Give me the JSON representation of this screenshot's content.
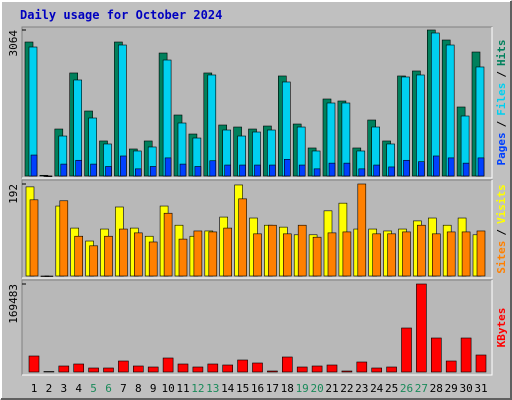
{
  "chart_data": [
    {
      "type": "bar",
      "title": "Daily usage for October 2024",
      "legend_separator": "/",
      "ylim": [
        0,
        3064
      ],
      "yticks": [
        3064
      ],
      "series": [
        {
          "name": "Hits",
          "color": "#00805c",
          "values": [
            2812,
            15,
            986,
            2162,
            1364,
            735,
            2812,
            567,
            735,
            2581,
            1280,
            881,
            2162,
            1070,
            1028,
            986,
            1049,
            2099,
            1091,
            588,
            1616,
            1574,
            588,
            1175,
            735,
            2099,
            2204,
            3064,
            2854,
            1448,
            2602
          ]
        },
        {
          "name": "Files",
          "color": "#00d0f0",
          "values": [
            2707,
            0,
            839,
            2015,
            1217,
            672,
            2749,
            525,
            609,
            2434,
            1112,
            797,
            2120,
            965,
            839,
            923,
            965,
            1973,
            1028,
            525,
            1532,
            1532,
            525,
            1028,
            672,
            2078,
            2120,
            3001,
            2749,
            1259,
            2288
          ]
        },
        {
          "name": "Pages",
          "color": "#0040ff",
          "values": [
            440,
            0,
            250,
            330,
            250,
            200,
            420,
            150,
            200,
            380,
            250,
            200,
            320,
            230,
            230,
            230,
            230,
            350,
            230,
            150,
            270,
            270,
            150,
            230,
            190,
            330,
            300,
            420,
            380,
            270,
            380
          ]
        }
      ]
    },
    {
      "type": "bar",
      "legend_separator": "/",
      "ylim": [
        0,
        192
      ],
      "yticks": [
        192
      ],
      "series": [
        {
          "name": "Visits",
          "color": "#ffff00",
          "values": [
            186,
            0,
            146,
            100,
            73,
            98,
            144,
            100,
            83,
            146,
            106,
            83,
            94,
            123,
            190,
            121,
            106,
            102,
            86,
            86,
            136,
            152,
            98,
            98,
            94,
            98,
            115,
            121,
            106,
            121,
            86
          ]
        },
        {
          "name": "Sites",
          "color": "#ff8000",
          "values": [
            159,
            0,
            157,
            83,
            63,
            83,
            98,
            90,
            71,
            131,
            77,
            94,
            92,
            100,
            161,
            88,
            106,
            88,
            106,
            81,
            90,
            92,
            192,
            88,
            88,
            92,
            106,
            88,
            92,
            92,
            94
          ]
        }
      ]
    },
    {
      "type": "bar",
      "ylim": [
        0,
        169483
      ],
      "yticks": [
        169483
      ],
      "categories": [
        "1",
        "2",
        "3",
        "4",
        "5",
        "6",
        "7",
        "8",
        "9",
        "10",
        "11",
        "12",
        "13",
        "14",
        "15",
        "16",
        "17",
        "18",
        "19",
        "20",
        "21",
        "22",
        "23",
        "24",
        "25",
        "26",
        "27",
        "28",
        "29",
        "30",
        "31"
      ],
      "weekend": [
        "5",
        "6",
        "12",
        "13",
        "19",
        "20",
        "26",
        "27"
      ],
      "weekend_color": "#1a8a5a",
      "series": [
        {
          "name": "KBytes",
          "color": "#ff0000",
          "values": [
            30815,
            1000,
            11556,
            15408,
            7704,
            7704,
            21185,
            11556,
            9630,
            26963,
            15408,
            9630,
            15408,
            13482,
            23111,
            17333,
            1926,
            28889,
            9630,
            11556,
            13482,
            1926,
            19259,
            7704,
            9630,
            84741,
            169483,
            65483,
            21185,
            65483,
            32741
          ]
        }
      ]
    }
  ]
}
